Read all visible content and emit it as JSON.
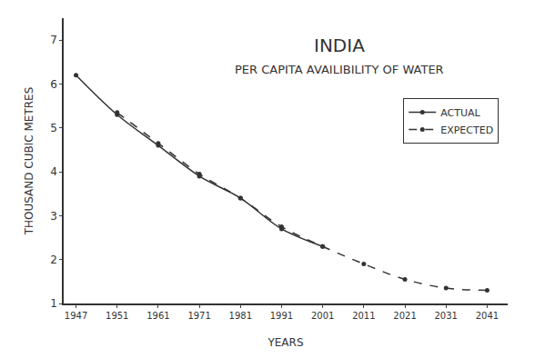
{
  "chart_data": {
    "type": "line",
    "title": "INDIA",
    "subtitle": "PER CAPITA AVAILIBILITY OF WATER",
    "x_label": "YEARS",
    "y_label": "THOUSAND CUBIC METRES",
    "categories": [
      "1947",
      "1951",
      "1961",
      "1971",
      "1981",
      "1991",
      "2001",
      "2011",
      "2021",
      "2031",
      "2041"
    ],
    "series": [
      {
        "name": "ACTUAL",
        "color": "#333333",
        "line_style": "solid",
        "marker": "circle",
        "values": [
          6.2,
          5.3,
          4.6,
          3.9,
          3.4,
          2.7,
          2.3,
          null,
          null,
          null,
          null
        ]
      },
      {
        "name": "EXPECTED",
        "color": "#333333",
        "line_style": "dash",
        "marker": "circle",
        "values": [
          null,
          5.35,
          4.65,
          3.95,
          3.4,
          2.75,
          2.3,
          1.9,
          1.55,
          1.35,
          1.3
        ]
      }
    ],
    "ylim": [
      1,
      7.5
    ],
    "yticks": [
      1,
      2,
      3,
      4,
      5,
      6,
      7
    ],
    "grid": false,
    "legend": "upper right"
  }
}
